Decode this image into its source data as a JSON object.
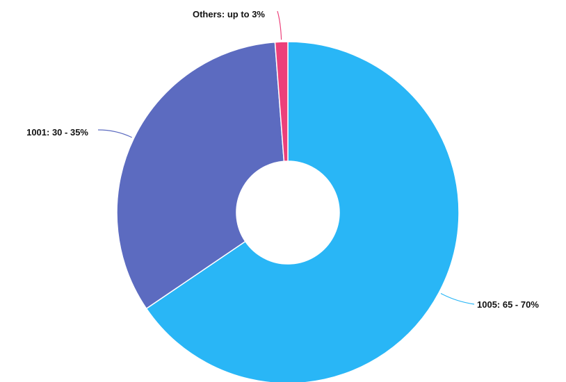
{
  "chart_data": {
    "type": "pie",
    "style": "donut",
    "title": "",
    "start_angle_deg": 0,
    "direction": "clockwise",
    "slices": [
      {
        "key": "1005",
        "label": "1005: 65 - 70%",
        "value": 65.5,
        "color": "#29B6F6"
      },
      {
        "key": "1001",
        "label": "1001: 30 - 35%",
        "value": 33.3,
        "color": "#5C6BC0"
      },
      {
        "key": "others",
        "label": "Others: up to 3%",
        "value": 1.2,
        "color": "#EC407A"
      }
    ],
    "separator_color": "#ffffff"
  }
}
